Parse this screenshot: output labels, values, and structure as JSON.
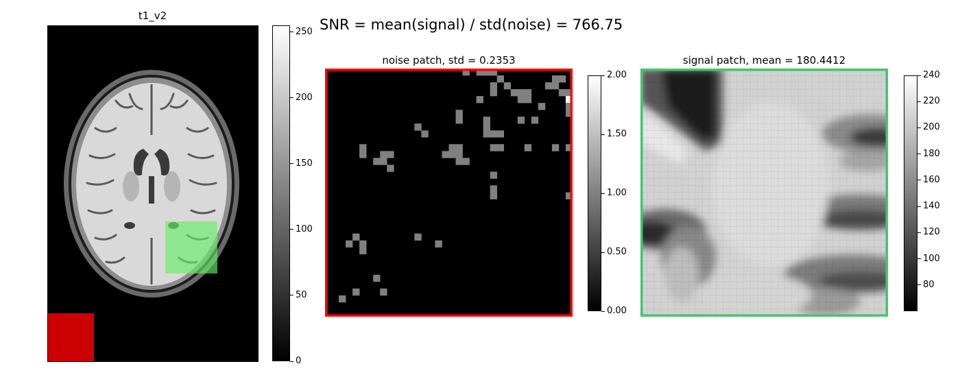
{
  "suptitle": "SNR = mean(signal) / std(noise) = 766.75",
  "panels": {
    "mri": {
      "title": "t1_v2",
      "colorbar_ticks": [
        "0",
        "50",
        "100",
        "150",
        "200",
        "250"
      ],
      "colorbar_range": [
        0,
        255
      ],
      "noise_roi_color": "#cc0000",
      "signal_roi_color": "#66ee66"
    },
    "noise": {
      "title": "noise patch, std = 0.2353",
      "border_color": "#ff0000",
      "colorbar_ticks": [
        "0.00",
        "0.50",
        "1.00",
        "1.50",
        "2.00"
      ],
      "colorbar_range": [
        0,
        2
      ]
    },
    "signal": {
      "title": "signal patch, mean = 180.4412",
      "border_color": "#44c46a",
      "colorbar_ticks": [
        "80",
        "100",
        "120",
        "140",
        "160",
        "180",
        "200",
        "220",
        "240"
      ],
      "colorbar_range": [
        60,
        240
      ]
    }
  }
}
